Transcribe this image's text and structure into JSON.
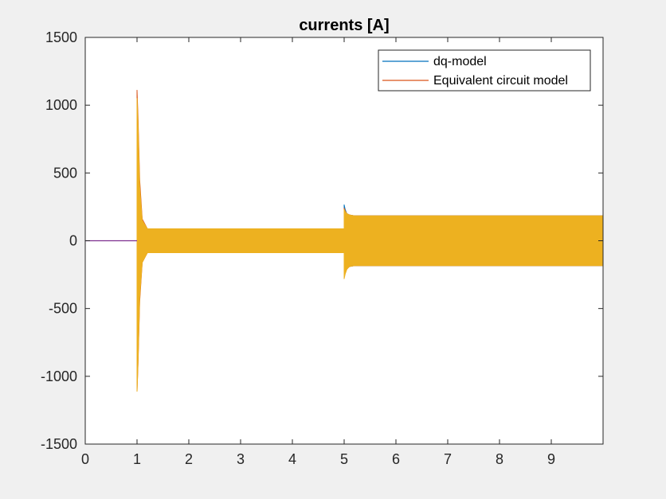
{
  "chart_data": {
    "type": "line",
    "title": "currents [A]",
    "xlabel": "",
    "ylabel": "",
    "xlim": [
      0,
      10
    ],
    "ylim": [
      -1500,
      1500
    ],
    "xticks": [
      0,
      1,
      2,
      3,
      4,
      5,
      6,
      7,
      8,
      9
    ],
    "xtick_labels": [
      "0",
      "1",
      "2",
      "3",
      "4",
      "5",
      "6",
      "7",
      "8",
      "9"
    ],
    "yticks": [
      1500,
      1000,
      500,
      0,
      -500,
      -1000,
      -1500
    ],
    "ytick_labels": [
      "1500",
      "1000",
      "500",
      "0",
      "-500",
      "-1000",
      "-1500"
    ],
    "grid": false,
    "legend_position": "top-right",
    "series": [
      {
        "name": "dq-model",
        "color": "#0072bd",
        "envelope": {
          "t": [
            0,
            1.0,
            1.0,
            1.02,
            1.05,
            1.1,
            1.2,
            5.0,
            5.0,
            5.02,
            5.05,
            5.1,
            5.2,
            10.0
          ],
          "upper": [
            0,
            0,
            740,
            600,
            300,
            120,
            88,
            88,
            265,
            230,
            200,
            190,
            183,
            183
          ],
          "lower": [
            0,
            0,
            -820,
            -600,
            -300,
            -130,
            -88,
            -88,
            -250,
            -225,
            -200,
            -190,
            -183,
            -183
          ]
        }
      },
      {
        "name": "Equivalent circuit model",
        "color": "#d95319",
        "envelope": {
          "t": [
            0,
            1.0,
            1.0,
            1.02,
            1.05,
            1.1,
            1.2,
            5.0,
            5.0,
            5.02,
            5.05,
            5.1,
            5.2,
            10.0
          ],
          "upper": [
            0,
            0,
            1110,
            900,
            450,
            160,
            88,
            88,
            240,
            220,
            200,
            190,
            183,
            183
          ],
          "lower": [
            0,
            0,
            -1110,
            -900,
            -450,
            -160,
            -88,
            -88,
            -270,
            -240,
            -210,
            -190,
            -183,
            -183
          ]
        }
      },
      {
        "name": "",
        "color": "#edb120",
        "envelope": {
          "t": [
            0,
            1.0,
            1.0,
            1.02,
            1.05,
            1.1,
            1.2,
            5.0,
            5.0,
            5.02,
            5.05,
            5.1,
            5.2,
            10.0
          ],
          "upper": [
            0,
            0,
            1050,
            850,
            400,
            150,
            88,
            88,
            230,
            215,
            200,
            190,
            183,
            183
          ],
          "lower": [
            0,
            0,
            -1110,
            -880,
            -420,
            -160,
            -88,
            -88,
            -280,
            -245,
            -210,
            -190,
            -183,
            -183
          ]
        }
      }
    ]
  }
}
